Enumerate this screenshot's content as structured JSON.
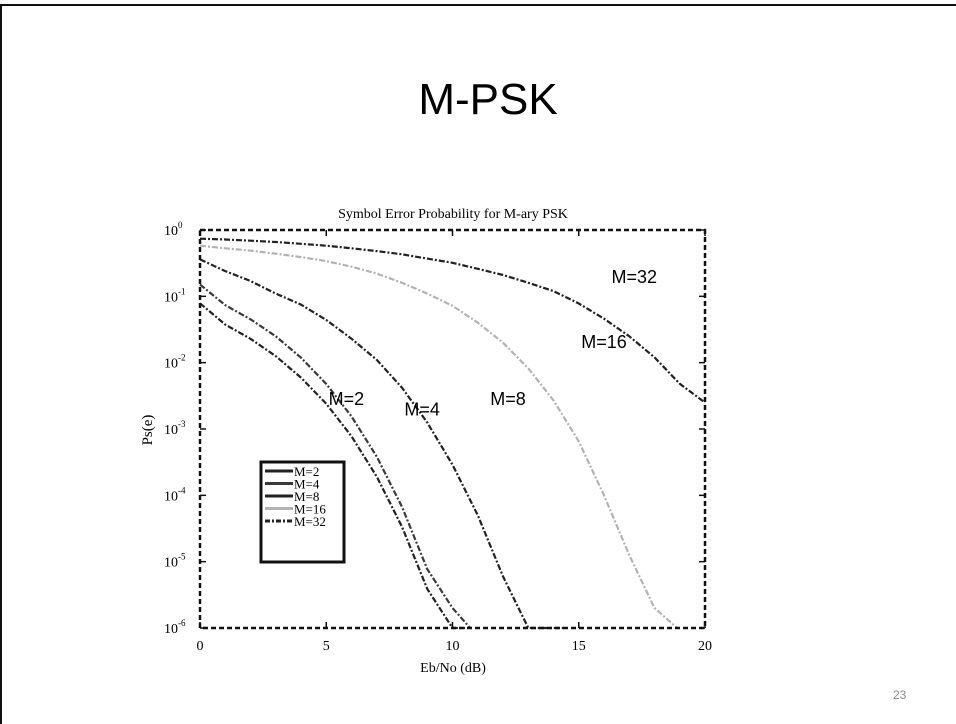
{
  "slide": {
    "title": "M-PSK",
    "page_number": "23"
  },
  "chart_data": {
    "type": "line",
    "title": "Symbol Error Probability for M-ary PSK",
    "xlabel": "Eb/No (dB)",
    "ylabel": "Ps(e)",
    "xlim": [
      0,
      20
    ],
    "ylim": [
      1e-06,
      1
    ],
    "yscale": "log",
    "grid": false,
    "x_ticks": [
      "0",
      "5",
      "10",
      "15",
      "20"
    ],
    "y_ticks": [
      {
        "base": "10",
        "exp": "0"
      },
      {
        "base": "10",
        "exp": "-1"
      },
      {
        "base": "10",
        "exp": "-2"
      },
      {
        "base": "10",
        "exp": "-3"
      },
      {
        "base": "10",
        "exp": "-4"
      },
      {
        "base": "10",
        "exp": "-5"
      },
      {
        "base": "10",
        "exp": "-6"
      }
    ],
    "legend_position": "lower-left",
    "legend": [
      "M=2",
      "M=4",
      "M=8",
      "M=16",
      "M=32"
    ],
    "series": [
      {
        "name": "M=2",
        "color": "#222222",
        "x": [
          0,
          1,
          2,
          3,
          4,
          5,
          6,
          7,
          8,
          9,
          10,
          10.5
        ],
        "y": [
          0.0786,
          0.0375,
          0.0229,
          0.0125,
          0.00595,
          0.0024,
          0.000775,
          0.000191,
          3.36e-05,
          3.87e-06,
          1e-06,
          1e-06
        ]
      },
      {
        "name": "M=4",
        "color": "#3a3a3a",
        "x": [
          0,
          1,
          2,
          3,
          4,
          5,
          6,
          7,
          8,
          9,
          10,
          10.7
        ],
        "y": [
          0.151,
          0.0736,
          0.045,
          0.025,
          0.0119,
          0.00477,
          0.00155,
          0.000382,
          6.7e-05,
          7.7e-06,
          2e-06,
          1e-06
        ]
      },
      {
        "name": "M=8",
        "color": "#222222",
        "x": [
          0,
          1,
          2,
          3,
          4,
          5,
          6,
          7,
          8,
          9,
          10,
          11,
          12,
          13,
          14,
          14.4
        ],
        "y": [
          0.36,
          0.24,
          0.17,
          0.11,
          0.075,
          0.044,
          0.023,
          0.011,
          0.0042,
          0.00125,
          0.00029,
          5e-05,
          6e-06,
          1e-06,
          1e-06,
          1e-06
        ]
      },
      {
        "name": "M=16",
        "color": "#b3b3b3",
        "x": [
          0,
          1,
          2,
          3,
          4,
          5,
          6,
          7,
          8,
          9,
          10,
          11,
          12,
          13,
          14,
          15,
          16,
          17,
          18,
          18.9
        ],
        "y": [
          0.58,
          0.53,
          0.49,
          0.44,
          0.39,
          0.34,
          0.28,
          0.22,
          0.16,
          0.11,
          0.072,
          0.04,
          0.02,
          0.0082,
          0.0027,
          0.00065,
          0.0001,
          1.25e-05,
          2e-06,
          1e-06
        ]
      },
      {
        "name": "M=32",
        "color": "#222222",
        "x": [
          0,
          1,
          2,
          3,
          4,
          5,
          6,
          7,
          8,
          9,
          10,
          11,
          12,
          13,
          14,
          15,
          16,
          17,
          18,
          19,
          20
        ],
        "y": [
          0.74,
          0.72,
          0.69,
          0.66,
          0.62,
          0.58,
          0.53,
          0.48,
          0.43,
          0.37,
          0.32,
          0.26,
          0.21,
          0.16,
          0.12,
          0.078,
          0.046,
          0.025,
          0.012,
          0.0048,
          0.0025
        ]
      }
    ],
    "annotations": [
      {
        "text": "M=2",
        "x": 5.8,
        "y": 0.0023
      },
      {
        "text": "M=4",
        "x": 8.8,
        "y": 0.0016
      },
      {
        "text": "M=8",
        "x": 12.2,
        "y": 0.0023
      },
      {
        "text": "M=16",
        "x": 16.0,
        "y": 0.0165
      },
      {
        "text": "M=32",
        "x": 17.2,
        "y": 0.16
      }
    ]
  }
}
